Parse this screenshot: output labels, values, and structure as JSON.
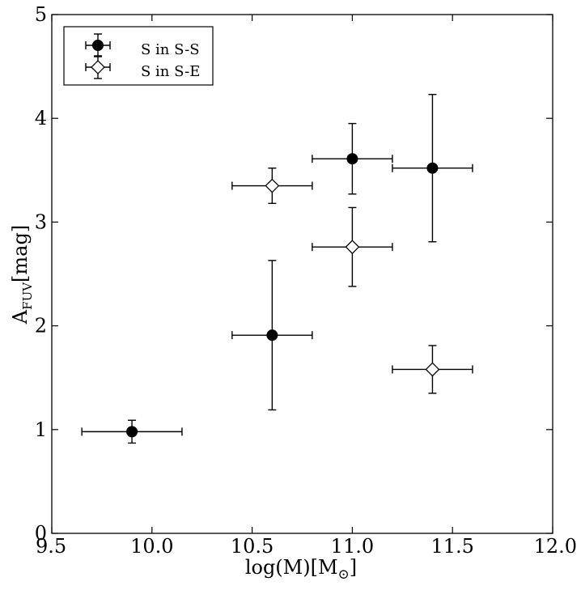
{
  "chart_data": {
    "type": "scatter",
    "xlabel": "log(M)[M",
    "xlabel_sub": "⊙",
    "xlabel_close": "]",
    "ylabel": "A",
    "ylabel_sub": "FUV",
    "ylabel_rest": "[mag]",
    "xlim": [
      9.5,
      12.0
    ],
    "ylim": [
      0,
      5
    ],
    "xticks": [
      "9.5",
      "10.0",
      "10.5",
      "11.0",
      "11.5",
      "12.0"
    ],
    "yticks": [
      "0",
      "1",
      "2",
      "3",
      "4",
      "5"
    ],
    "grid": false,
    "legend_position": "top-left",
    "series": [
      {
        "name": "S in S-S",
        "marker": "filled-circle",
        "color": "#000000",
        "points": [
          {
            "x": 9.9,
            "y": 0.98,
            "xerr": 0.25,
            "yerr": 0.11
          },
          {
            "x": 10.6,
            "y": 1.91,
            "xerr": 0.2,
            "yerr": 0.72
          },
          {
            "x": 11.0,
            "y": 3.61,
            "xerr": 0.2,
            "yerr": 0.34
          },
          {
            "x": 11.4,
            "y": 3.52,
            "xerr": 0.2,
            "yerr": 0.71
          }
        ]
      },
      {
        "name": "S in S-E",
        "marker": "open-diamond",
        "color": "#000000",
        "points": [
          {
            "x": 10.6,
            "y": 3.35,
            "xerr": 0.2,
            "yerr": 0.17
          },
          {
            "x": 11.0,
            "y": 2.76,
            "xerr": 0.2,
            "yerr": 0.38
          },
          {
            "x": 11.4,
            "y": 1.58,
            "xerr": 0.2,
            "yerr": 0.23
          }
        ]
      }
    ]
  }
}
